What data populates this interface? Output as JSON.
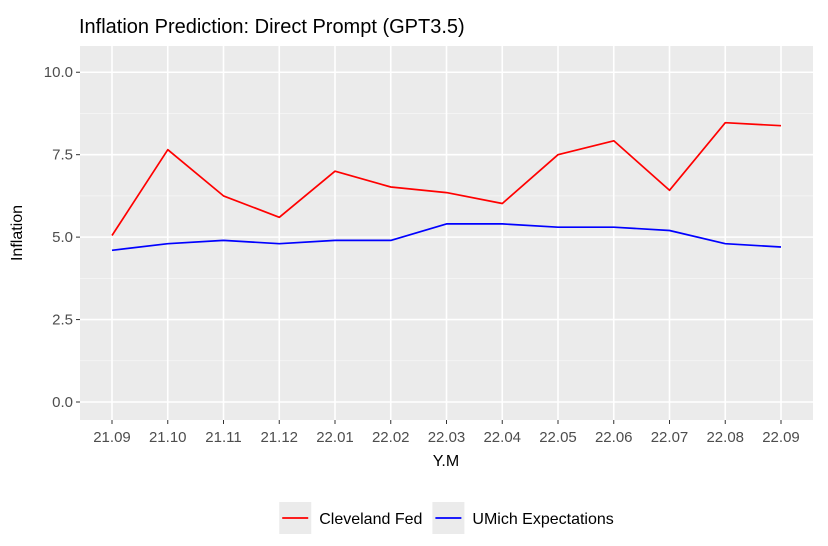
{
  "chart_data": {
    "type": "line",
    "title": "Inflation Prediction: Direct Prompt (GPT3.5)",
    "xlabel": "Y.M",
    "ylabel": "Inflation",
    "categories": [
      "21.09",
      "21.10",
      "21.11",
      "21.12",
      "22.01",
      "22.02",
      "22.03",
      "22.04",
      "22.05",
      "22.06",
      "22.07",
      "22.08",
      "22.09"
    ],
    "series": [
      {
        "name": "Cleveland Fed",
        "color": "#ff0000",
        "values": [
          5.05,
          7.65,
          6.25,
          5.6,
          7.0,
          6.52,
          6.35,
          6.02,
          7.5,
          7.92,
          6.42,
          8.47,
          8.38
        ]
      },
      {
        "name": "UMich Expectations",
        "color": "#0000ff",
        "values": [
          4.6,
          4.8,
          4.9,
          4.8,
          4.9,
          4.9,
          5.4,
          5.4,
          5.3,
          5.3,
          5.2,
          4.8,
          4.7
        ]
      }
    ],
    "ylim": [
      0,
      10.25
    ],
    "yticks": [
      "0.0",
      "2.5",
      "5.0",
      "7.5",
      "10.0"
    ],
    "ytick_values": [
      0,
      2.5,
      5,
      7.5,
      10
    ],
    "grid": true,
    "legend_position": "bottom"
  }
}
